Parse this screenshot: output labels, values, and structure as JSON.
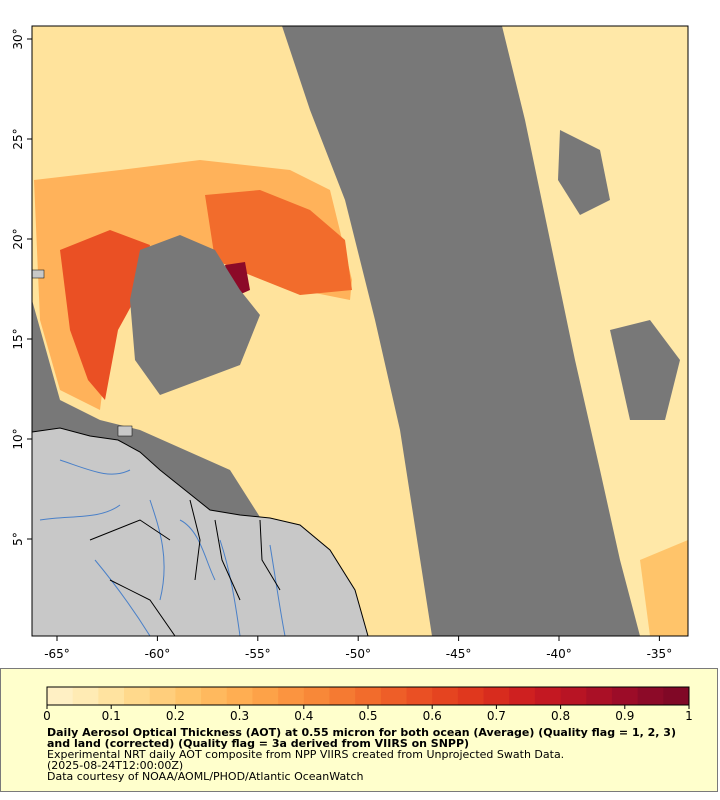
{
  "map": {
    "longitude_ticks": [
      {
        "lon": -65,
        "label": "-65°"
      },
      {
        "lon": -60,
        "label": "-60°"
      },
      {
        "lon": -55,
        "label": "-55°"
      },
      {
        "lon": -50,
        "label": "-50°"
      },
      {
        "lon": -45,
        "label": "-45°"
      },
      {
        "lon": -40,
        "label": "-40°"
      },
      {
        "lon": -35,
        "label": "-35°"
      }
    ],
    "latitude_ticks": [
      {
        "lat": 30,
        "label": "30°"
      },
      {
        "lat": 25,
        "label": "25°"
      },
      {
        "lat": 20,
        "label": "20°"
      },
      {
        "lat": 15,
        "label": "15°"
      },
      {
        "lat": 10,
        "label": "10°"
      },
      {
        "lat": 5,
        "label": "5°"
      }
    ],
    "colors": {
      "no_data": "#787878",
      "land": "#c8c8c8",
      "coast": "#000000",
      "rivers": "#4a80c8"
    }
  },
  "legend": {
    "ticks": [
      "0",
      "0.1",
      "0.2",
      "0.3",
      "0.4",
      "0.5",
      "0.6",
      "0.7",
      "0.8",
      "0.9",
      "1"
    ],
    "colors": [
      "#fff0c4",
      "#ffebb4",
      "#ffe3a0",
      "#ffd98c",
      "#ffce7c",
      "#ffc46a",
      "#ffb95e",
      "#ffae52",
      "#fda248",
      "#fb9440",
      "#f88838",
      "#f57a32",
      "#f26c2c",
      "#ee5e28",
      "#ea5024",
      "#e54420",
      "#e0381e",
      "#d82c1e",
      "#cf2020",
      "#c41822",
      "#b81424",
      "#aa1026",
      "#9c0c28",
      "#8c0a28",
      "#800826"
    ],
    "title": "Daily Aerosol Optical Thickness (AOT) at 0.55 micron for both ocean (Average) (Quality flag = 1, 2, 3) and land (corrected) (Quality flag = 3a derived from VIIRS on SNPP)",
    "line1": "Experimental NRT daily AOT composite from NPP VIIRS created from Unprojected Swath Data.",
    "line2": "(2025-08-24T12:00:00Z)",
    "line3": "Data courtesy of NOAA/AOML/PHOD/Atlantic OceanWatch"
  }
}
